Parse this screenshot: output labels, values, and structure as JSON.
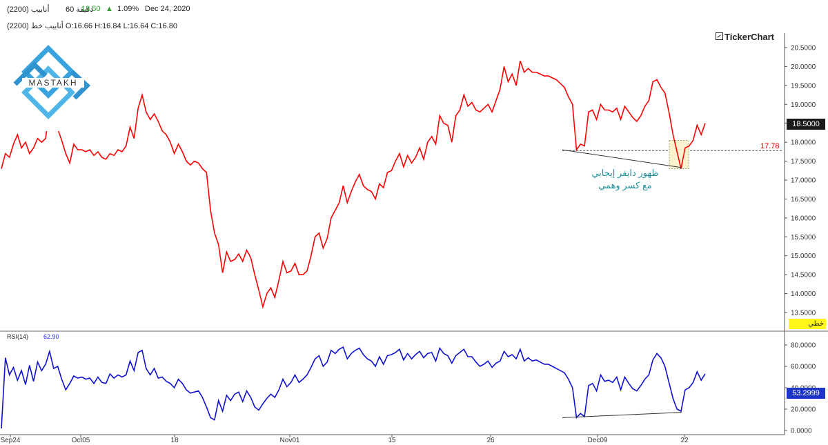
{
  "header": {
    "symbol": "(2200) أنابيب",
    "period": "60 دقيقة",
    "last_price": "18.50",
    "change_arrow": "▲",
    "change_pct": "1.09%",
    "date": "Dec 24, 2020",
    "ohlc_line": "(2200) أنابيب خط O:16.66 H:16.84 L:16.64 C:16.80"
  },
  "brand": "TickerChart",
  "logo_text": "MASTAKH",
  "price_panel": {
    "last_badge": "18.5000",
    "level_label": "17.78",
    "line_type_badge": "خطي",
    "annotation_line1": "ظهور دايفر إيجابي",
    "annotation_line2": "مع كسر وهمي",
    "y_ticks": [
      "20.5000",
      "20.0000",
      "19.5000",
      "19.0000",
      "18.5000",
      "18.0000",
      "17.5000",
      "17.0000",
      "16.5000",
      "16.0000",
      "15.5000",
      "15.0000",
      "14.5000",
      "14.0000",
      "13.5000"
    ]
  },
  "rsi_panel": {
    "title": "RSI(14)",
    "current_value_text": "62.90",
    "badge": "53.2999",
    "y_ticks": [
      "80.0000",
      "60.0000",
      "40.0000",
      "20.0000",
      "0.0000"
    ]
  },
  "x_axis": [
    "Sep24",
    "Oct05",
    "18",
    "Nov01",
    "15",
    "26",
    "Dec09",
    "22"
  ],
  "colors": {
    "price_line": "#ff0000",
    "rsi_line": "#1010d0",
    "up": "#2e9d2e",
    "annotation": "#1f8f9a",
    "level_line": "#e00000"
  },
  "chart_data": [
    {
      "type": "line",
      "title": "(2200) أنابيب",
      "series": [
        {
          "name": "(2200) أنابيب",
          "values": [
            17.3,
            17.7,
            17.6,
            17.95,
            18.2,
            17.85,
            18.0,
            17.7,
            17.85,
            18.1,
            18.0,
            18.1,
            18.9,
            18.45,
            18.35,
            18.05,
            17.7,
            17.45,
            17.95,
            17.8,
            17.8,
            17.75,
            17.8,
            17.65,
            17.75,
            17.6,
            17.55,
            17.7,
            17.65,
            17.8,
            17.75,
            17.9,
            18.4,
            18.1,
            18.9,
            19.25,
            18.8,
            18.6,
            18.75,
            18.55,
            18.3,
            18.2,
            18.0,
            17.7,
            17.95,
            17.75,
            17.5,
            17.4,
            17.5,
            17.45,
            17.3,
            17.2,
            16.2,
            15.6,
            15.3,
            14.55,
            15.1,
            14.85,
            14.9,
            15.05,
            14.85,
            15.15,
            14.95,
            14.5,
            14.1,
            13.65,
            14.0,
            14.15,
            13.9,
            14.35,
            14.85,
            14.55,
            14.6,
            14.8,
            14.5,
            14.5,
            14.6,
            15.0,
            15.5,
            15.6,
            15.2,
            15.45,
            16.0,
            16.2,
            16.4,
            16.85,
            16.4,
            16.7,
            16.95,
            17.15,
            16.85,
            16.75,
            16.7,
            16.5,
            16.9,
            16.8,
            17.2,
            17.25,
            17.5,
            17.7,
            17.35,
            17.65,
            17.45,
            17.6,
            17.85,
            17.55,
            18.0,
            18.15,
            17.95,
            18.7,
            18.5,
            18.45,
            18.0,
            18.7,
            18.85,
            19.25,
            18.95,
            19.05,
            18.85,
            18.8,
            18.9,
            19.0,
            18.8,
            19.1,
            19.4,
            20.0,
            19.6,
            19.8,
            19.5,
            20.15,
            19.85,
            19.95,
            19.85,
            19.85,
            19.8,
            19.75,
            19.75,
            19.7,
            19.65,
            19.55,
            19.45,
            19.2,
            19.0,
            17.8,
            17.95,
            17.9,
            18.8,
            18.85,
            18.6,
            19.0,
            18.85,
            18.85,
            18.8,
            18.9,
            18.6,
            18.95,
            18.8,
            18.65,
            18.55,
            18.7,
            18.95,
            19.1,
            19.6,
            19.65,
            19.45,
            19.3,
            18.8,
            18.2,
            17.75,
            17.3,
            17.85,
            17.9,
            18.05,
            18.45,
            18.2,
            18.5
          ]
        }
      ],
      "x_ticks": [
        "Sep24",
        "Oct05",
        "18",
        "Nov01",
        "15",
        "26",
        "Dec09",
        "22"
      ],
      "ylim": [
        13.3,
        20.7
      ],
      "horizontal_line": 17.78,
      "annotation": "ظهور دايفر إيجابي مع كسر وهمي"
    },
    {
      "type": "line",
      "title": "RSI(14)",
      "series": [
        {
          "name": "RSI(14)",
          "values": [
            2,
            68,
            52,
            59,
            47,
            56,
            43,
            61,
            46,
            64,
            56,
            62,
            74,
            58,
            60,
            48,
            38,
            44,
            51,
            49,
            50,
            48,
            49,
            44,
            50,
            45,
            44,
            53,
            49,
            52,
            50,
            52,
            65,
            56,
            73,
            75,
            58,
            52,
            58,
            49,
            50,
            46,
            44,
            40,
            48,
            44,
            38,
            35,
            36,
            37,
            31,
            22,
            12,
            10,
            28,
            18,
            33,
            28,
            34,
            36,
            27,
            37,
            31,
            22,
            19,
            25,
            30,
            34,
            31,
            38,
            48,
            41,
            45,
            52,
            45,
            48,
            52,
            59,
            67,
            70,
            60,
            64,
            75,
            72,
            76,
            78,
            67,
            72,
            75,
            77,
            71,
            67,
            65,
            60,
            69,
            62,
            70,
            71,
            73,
            76,
            66,
            72,
            67,
            71,
            74,
            68,
            72,
            73,
            65,
            77,
            72,
            70,
            63,
            70,
            73,
            76,
            69,
            69,
            64,
            60,
            62,
            65,
            59,
            63,
            65,
            74,
            69,
            71,
            67,
            76,
            65,
            68,
            65,
            66,
            64,
            62,
            62,
            60,
            58,
            56,
            54,
            48,
            40,
            12,
            16,
            13,
            42,
            44,
            37,
            52,
            46,
            47,
            45,
            50,
            38,
            50,
            44,
            39,
            37,
            42,
            48,
            52,
            66,
            72,
            68,
            60,
            45,
            30,
            20,
            18,
            38,
            40,
            45,
            55,
            47,
            53
          ]
        }
      ],
      "ylim": [
        0,
        85
      ],
      "ticks": [
        0,
        20,
        40,
        60,
        80
      ]
    }
  ]
}
